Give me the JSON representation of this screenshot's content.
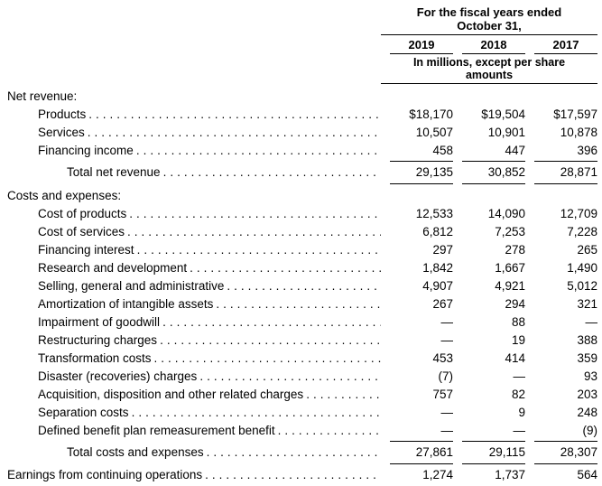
{
  "header": {
    "period_line1": "For the fiscal years ended",
    "period_line2": "October 31,",
    "years": [
      "2019",
      "2018",
      "2017"
    ],
    "units_line1": "In millions, except per share",
    "units_line2": "amounts"
  },
  "table": {
    "rows": [
      {
        "label": "Net revenue:"
      },
      {
        "label": "Products",
        "values": [
          "$18,170",
          "$19,504",
          "$17,597"
        ]
      },
      {
        "label": "Services",
        "values": [
          "10,507",
          "10,901",
          "10,878"
        ]
      },
      {
        "label": "Financing income",
        "values": [
          "458",
          "447",
          "396"
        ]
      },
      {
        "label": "Total net revenue",
        "values": [
          "29,135",
          "30,852",
          "28,871"
        ]
      },
      {
        "label": "Costs and expenses:"
      },
      {
        "label": "Cost of products",
        "values": [
          "12,533",
          "14,090",
          "12,709"
        ]
      },
      {
        "label": "Cost of services",
        "values": [
          "6,812",
          "7,253",
          "7,228"
        ]
      },
      {
        "label": "Financing interest",
        "values": [
          "297",
          "278",
          "265"
        ]
      },
      {
        "label": "Research and development",
        "values": [
          "1,842",
          "1,667",
          "1,490"
        ]
      },
      {
        "label": "Selling, general and administrative",
        "values": [
          "4,907",
          "4,921",
          "5,012"
        ]
      },
      {
        "label": "Amortization of intangible assets",
        "values": [
          "267",
          "294",
          "321"
        ]
      },
      {
        "label": "Impairment of goodwill",
        "values": [
          "—",
          "88",
          "—"
        ]
      },
      {
        "label": "Restructuring charges",
        "values": [
          "—",
          "19",
          "388"
        ]
      },
      {
        "label": "Transformation costs",
        "values": [
          "453",
          "414",
          "359"
        ]
      },
      {
        "label": "Disaster (recoveries) charges",
        "values": [
          "(7)",
          "—",
          "93"
        ]
      },
      {
        "label": "Acquisition, disposition and other related charges",
        "values": [
          "757",
          "82",
          "203"
        ]
      },
      {
        "label": "Separation costs",
        "values": [
          "—",
          "9",
          "248"
        ]
      },
      {
        "label": "Defined benefit plan remeasurement benefit",
        "values": [
          "—",
          "—",
          "(9)"
        ]
      },
      {
        "label": "Total costs and expenses",
        "values": [
          "27,861",
          "29,115",
          "28,307"
        ]
      },
      {
        "label": "Earnings from continuing operations",
        "values": [
          "1,274",
          "1,737",
          "564"
        ]
      }
    ]
  }
}
